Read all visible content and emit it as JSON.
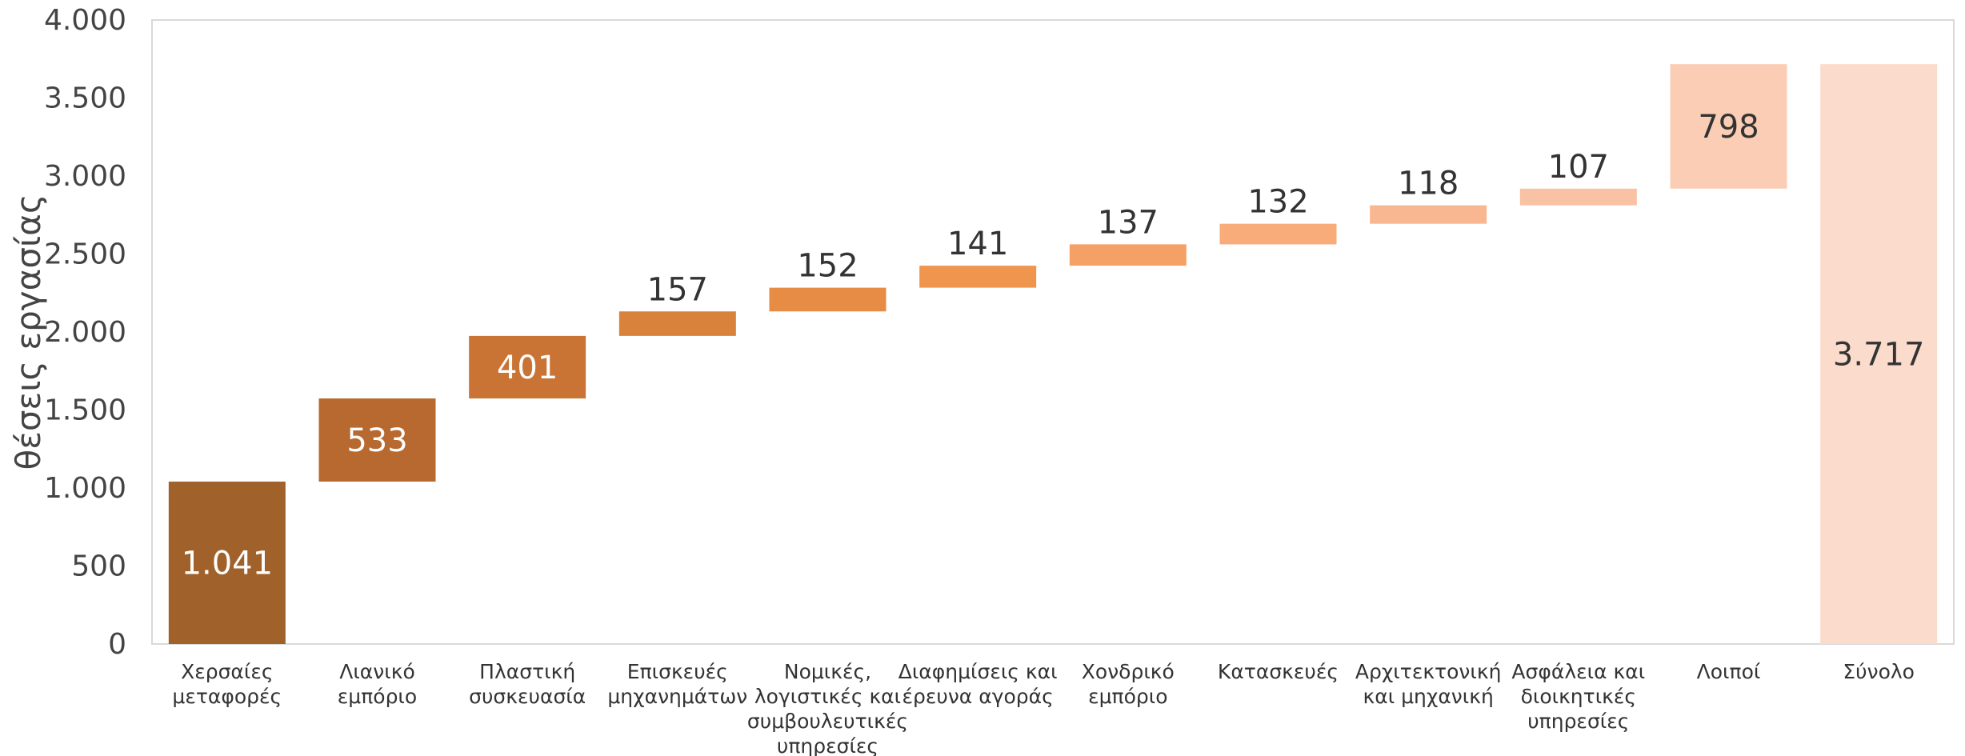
{
  "chart_data": {
    "type": "waterfall",
    "title": "",
    "xlabel": "",
    "ylabel": "θέσεις εργασίας",
    "ylim": [
      0,
      4000
    ],
    "y_ticks": [
      {
        "value": 0,
        "label": "0"
      },
      {
        "value": 500,
        "label": "500"
      },
      {
        "value": 1000,
        "label": "1.000"
      },
      {
        "value": 1500,
        "label": "1.500"
      },
      {
        "value": 2000,
        "label": "2.000"
      },
      {
        "value": 2500,
        "label": "2.500"
      },
      {
        "value": 3000,
        "label": "3.000"
      },
      {
        "value": 3500,
        "label": "3.500"
      },
      {
        "value": 4000,
        "label": "4.000"
      }
    ],
    "grid": false,
    "legend": "none",
    "bars": [
      {
        "category": [
          "Χερσαίες",
          "μεταφορές"
        ],
        "value": 1041,
        "label": "1.041",
        "color": "#A0612B",
        "label_color": "#FFFFFF",
        "label_pos": "inside"
      },
      {
        "category": [
          "Λιανικό",
          "εμπόριο"
        ],
        "value": 533,
        "label": "533",
        "color": "#B8692F",
        "label_color": "#FFFFFF",
        "label_pos": "inside"
      },
      {
        "category": [
          "Πλαστική",
          "συσκευασία"
        ],
        "value": 401,
        "label": "401",
        "color": "#C97434",
        "label_color": "#FFFFFF",
        "label_pos": "inside"
      },
      {
        "category": [
          "Επισκευές",
          "μηχανημάτων"
        ],
        "value": 157,
        "label": "157",
        "color": "#D8823C",
        "label_color": "#333333",
        "label_pos": "above"
      },
      {
        "category": [
          "Νομικές,",
          "λογιστικές και",
          "συμβουλευτικές",
          "υπηρεσίες"
        ],
        "value": 152,
        "label": "152",
        "color": "#E68C44",
        "label_color": "#333333",
        "label_pos": "above"
      },
      {
        "category": [
          "Διαφημίσεις και",
          "έρευνα αγοράς"
        ],
        "value": 141,
        "label": "141",
        "color": "#F0954E",
        "label_color": "#333333",
        "label_pos": "above"
      },
      {
        "category": [
          "Χονδρικό",
          "εμπόριο"
        ],
        "value": 137,
        "label": "137",
        "color": "#F5A065",
        "label_color": "#333333",
        "label_pos": "above"
      },
      {
        "category": [
          "Κατασκευές"
        ],
        "value": 132,
        "label": "132",
        "color": "#F7AC7A",
        "label_color": "#333333",
        "label_pos": "above"
      },
      {
        "category": [
          "Αρχιτεκτονική",
          "και μηχανική"
        ],
        "value": 118,
        "label": "118",
        "color": "#F8B791",
        "label_color": "#333333",
        "label_pos": "above"
      },
      {
        "category": [
          "Ασφάλεια και",
          "διοικητικές",
          "υπηρεσίες"
        ],
        "value": 107,
        "label": "107",
        "color": "#F9C2A4",
        "label_color": "#333333",
        "label_pos": "above"
      },
      {
        "category": [
          "Λοιποί"
        ],
        "value": 798,
        "label": "798",
        "color": "#FBCDB5",
        "label_color": "#333333",
        "label_pos": "inside"
      },
      {
        "category": [
          "Σύνολο"
        ],
        "value": 3717,
        "label": "3.717",
        "color": "#FBDBCB",
        "label_color": "#333333",
        "label_pos": "inside",
        "is_total": true
      }
    ]
  }
}
